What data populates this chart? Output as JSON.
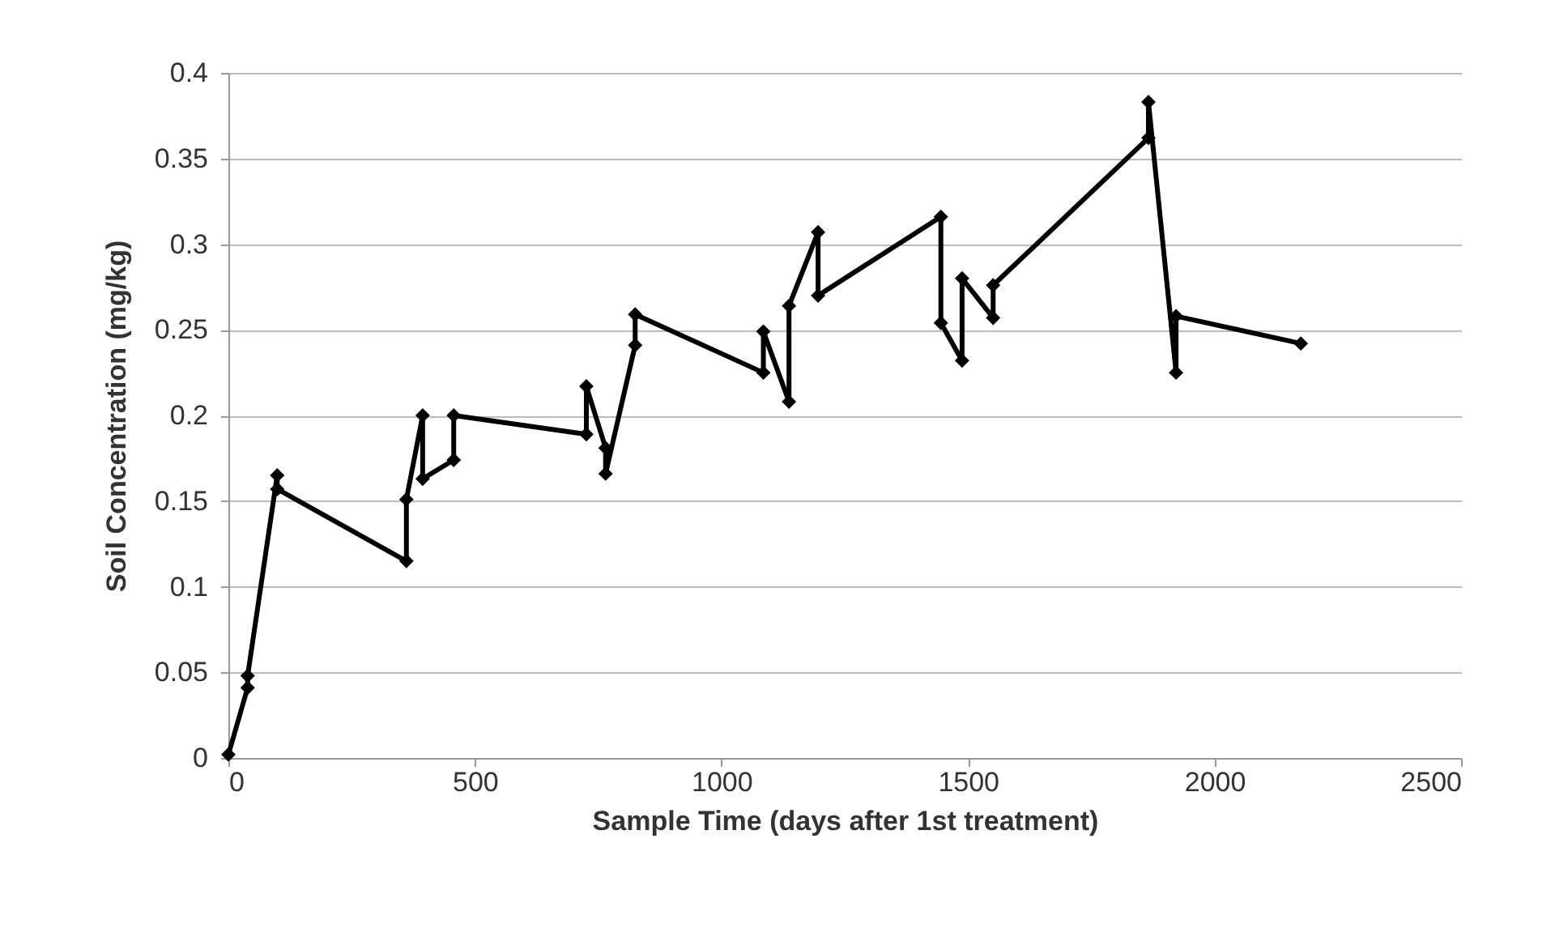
{
  "chart_data": {
    "type": "line",
    "xlabel": "Sample Time (days after 1st treatment)",
    "ylabel": "Soil Concentration (mg/kg)",
    "x": [
      0,
      39,
      39,
      99,
      99,
      361,
      361,
      394,
      394,
      457,
      457,
      726,
      726,
      765,
      765,
      825,
      825,
      1085,
      1085,
      1137,
      1137,
      1196,
      1196,
      1445,
      1445,
      1488,
      1488,
      1551,
      1551,
      1866,
      1866,
      1922,
      1922,
      2175
    ],
    "series": [
      {
        "color": "#000000",
        "values": [
          0.002,
          0.041,
          0.048,
          0.165,
          0.157,
          0.115,
          0.151,
          0.2,
          0.163,
          0.174,
          0.2,
          0.189,
          0.217,
          0.181,
          0.166,
          0.241,
          0.259,
          0.225,
          0.249,
          0.208,
          0.264,
          0.307,
          0.27,
          0.316,
          0.254,
          0.232,
          0.28,
          0.257,
          0.276,
          0.362,
          0.383,
          0.225,
          0.258,
          0.242
        ]
      }
    ],
    "xlim": [
      0,
      2500
    ],
    "xticks": [
      0,
      500,
      1000,
      1500,
      2000,
      2500
    ],
    "ylim": [
      0,
      0.4
    ],
    "yticks": [
      0,
      0.05,
      0.1,
      0.15,
      0.2,
      0.25,
      0.3,
      0.35,
      0.4
    ],
    "grid": "y",
    "marker": "diamond",
    "line_style": "solid",
    "legend": false
  }
}
